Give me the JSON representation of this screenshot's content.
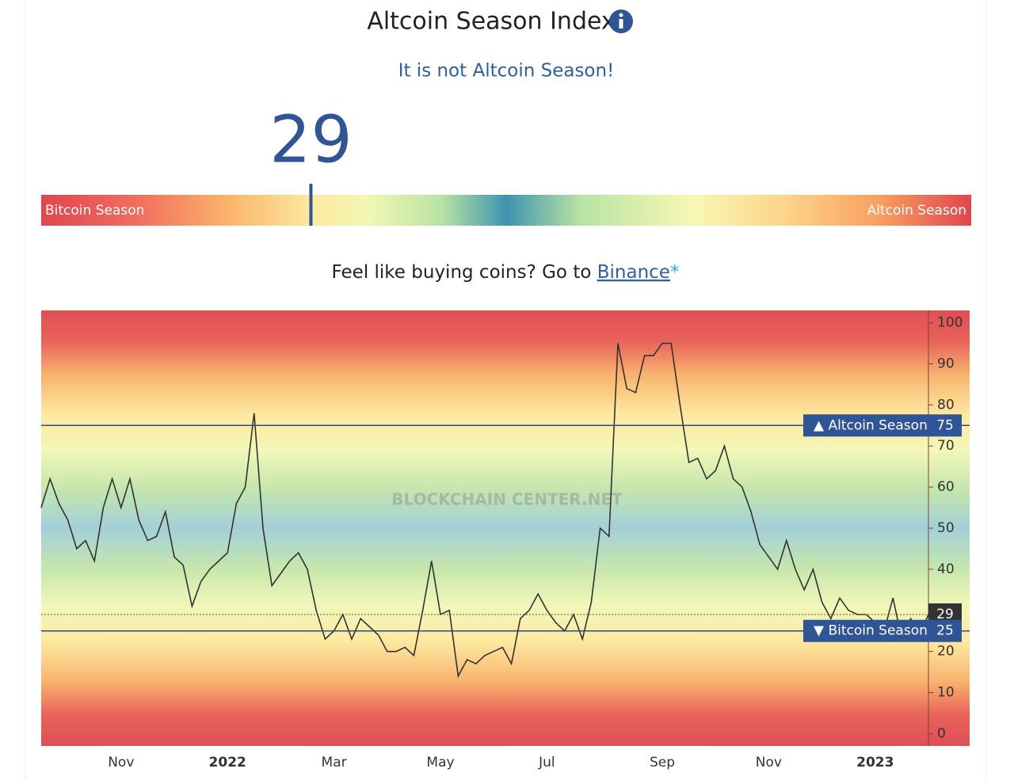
{
  "header": {
    "title": "Altcoin Season Index",
    "status": "It is not Altcoin Season!"
  },
  "gauge": {
    "value": 29,
    "lim": [
      0,
      100
    ],
    "left_label": "Bitcoin Season",
    "right_label": "Altcoin Season"
  },
  "promo": {
    "text": "Feel like buying coins? Go to",
    "link": "Binance",
    "mark": "*"
  },
  "chart_data": {
    "type": "line",
    "watermark": "BLOCKCHAIN CENTER.NET",
    "color": "#333333",
    "categories": [
      null,
      null,
      null,
      null,
      null,
      null,
      null,
      null,
      null,
      "Nov",
      null,
      null,
      null,
      null,
      null,
      null,
      null,
      null,
      null,
      null,
      null,
      "2022",
      null,
      null,
      null,
      null,
      null,
      null,
      null,
      null,
      null,
      null,
      null,
      "Mar",
      null,
      null,
      null,
      null,
      null,
      null,
      null,
      null,
      null,
      null,
      null,
      "May",
      null,
      null,
      null,
      null,
      null,
      null,
      null,
      null,
      null,
      null,
      null,
      "Jul",
      null,
      null,
      null,
      null,
      null,
      null,
      null,
      null,
      null,
      null,
      null,
      null,
      "Sep",
      null,
      null,
      null,
      null,
      null,
      null,
      null,
      null,
      null,
      null,
      null,
      "Nov",
      null,
      null,
      null,
      null,
      null,
      null,
      null,
      null,
      null,
      null,
      null,
      "2023",
      null,
      null,
      null,
      null,
      null,
      null
    ],
    "values": [
      55,
      62,
      56,
      52,
      45,
      47,
      42,
      55,
      62,
      55,
      62,
      52,
      47,
      48,
      54,
      43,
      41,
      31,
      37,
      40,
      42,
      44,
      56,
      60,
      78,
      50,
      36,
      39,
      42,
      44,
      40,
      30,
      23,
      25,
      29,
      23,
      28,
      26,
      24,
      20,
      20,
      21,
      19,
      30,
      42,
      29,
      30,
      14,
      18,
      17,
      19,
      20,
      21,
      17,
      28,
      30,
      34,
      30,
      27,
      25,
      29,
      23,
      32,
      50,
      48,
      95,
      84,
      83,
      92,
      92,
      95,
      95,
      80,
      66,
      67,
      62,
      64,
      70,
      62,
      60,
      54,
      46,
      43,
      40,
      47,
      40,
      35,
      40,
      32,
      28,
      33,
      30,
      29,
      29,
      27,
      25,
      33,
      23,
      28,
      24,
      29
    ],
    "ylim": [
      -3,
      103
    ],
    "yticks": [
      0,
      10,
      20,
      30,
      40,
      50,
      60,
      70,
      80,
      90,
      100
    ],
    "plot_lines": [
      {
        "value": 75,
        "label": "▲ Altcoin Season"
      },
      {
        "value": 25,
        "label": "▼ Bitcoin Season"
      }
    ],
    "current_line": 29
  }
}
